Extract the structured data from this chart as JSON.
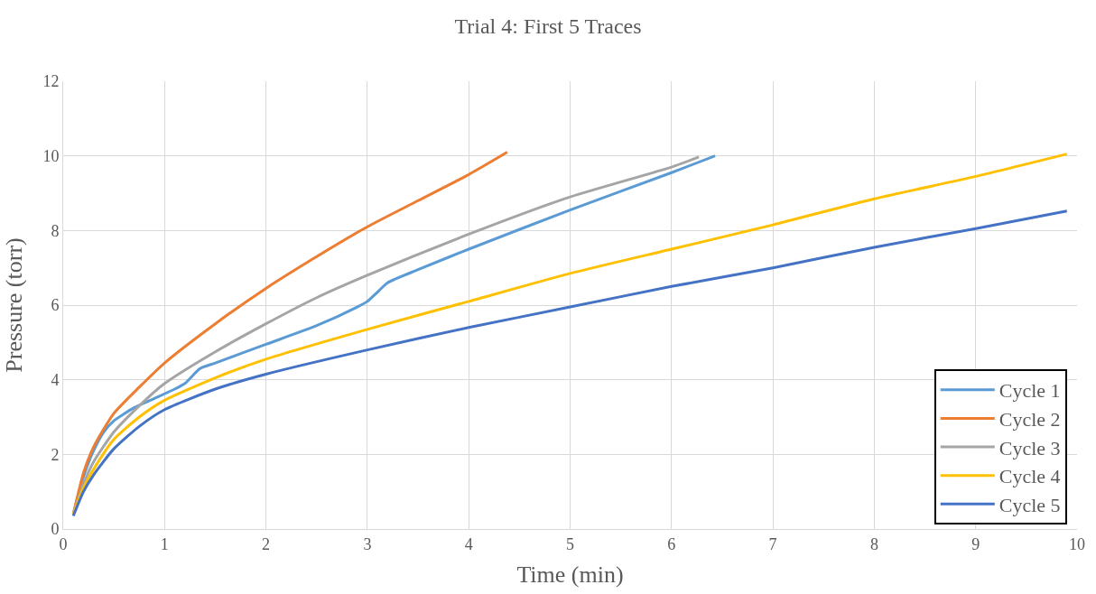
{
  "chart_data": {
    "type": "line",
    "title": "Trial 4: First 5 Traces",
    "xlabel": "Time (min)",
    "ylabel": "Pressure (torr)",
    "xlim": [
      0,
      10
    ],
    "xticks": [
      0,
      1,
      2,
      3,
      4,
      5,
      6,
      7,
      8,
      9,
      10
    ],
    "ylim": [
      0,
      12
    ],
    "yticks": [
      0,
      2,
      4,
      6,
      8,
      10,
      12
    ],
    "grid": true,
    "legend": "bottom right",
    "marker": "none",
    "line_style": "solid",
    "series": [
      {
        "name": "Cycle 1",
        "color": "#5b9bd5",
        "x": [
          0.1,
          0.2,
          0.3,
          0.4,
          0.5,
          0.7,
          0.9,
          1.1,
          1.2,
          1.35,
          1.5,
          2,
          2.5,
          2.9,
          3.0,
          3.1,
          3.2,
          3.5,
          4,
          5,
          6,
          6.43
        ],
        "values": [
          0.4,
          1.4,
          2.1,
          2.6,
          2.9,
          3.25,
          3.5,
          3.75,
          3.9,
          4.3,
          4.45,
          4.95,
          5.45,
          5.95,
          6.1,
          6.35,
          6.6,
          6.95,
          7.5,
          8.55,
          9.55,
          10.0
        ]
      },
      {
        "name": "Cycle 2",
        "color": "#ed7d31",
        "x": [
          0.1,
          0.2,
          0.3,
          0.5,
          0.75,
          1,
          1.5,
          2,
          2.5,
          3,
          3.5,
          4,
          4.38
        ],
        "values": [
          0.4,
          1.5,
          2.2,
          3.1,
          3.8,
          4.45,
          5.5,
          6.45,
          7.3,
          8.1,
          8.8,
          9.5,
          10.1
        ]
      },
      {
        "name": "Cycle 3",
        "color": "#a5a5a5",
        "x": [
          0.1,
          0.2,
          0.3,
          0.5,
          0.75,
          1,
          1.5,
          2,
          2.5,
          3,
          4,
          5,
          6,
          6.27
        ],
        "values": [
          0.4,
          1.2,
          1.8,
          2.6,
          3.3,
          3.9,
          4.75,
          5.5,
          6.2,
          6.8,
          7.9,
          8.9,
          9.7,
          9.97
        ]
      },
      {
        "name": "Cycle 4",
        "color": "#ffc000",
        "x": [
          0.1,
          0.2,
          0.3,
          0.5,
          0.75,
          1,
          1.5,
          2,
          3,
          4,
          5,
          6,
          7,
          8,
          9,
          9.9
        ],
        "values": [
          0.4,
          1.1,
          1.6,
          2.4,
          3.0,
          3.45,
          4.05,
          4.55,
          5.35,
          6.1,
          6.85,
          7.5,
          8.15,
          8.85,
          9.45,
          10.05
        ]
      },
      {
        "name": "Cycle 5",
        "color": "#4472c4",
        "x": [
          0.1,
          0.2,
          0.3,
          0.5,
          0.75,
          1,
          1.5,
          2,
          3,
          4,
          5,
          6,
          7,
          8,
          9,
          9.9
        ],
        "values": [
          0.35,
          1.0,
          1.45,
          2.15,
          2.75,
          3.2,
          3.75,
          4.15,
          4.8,
          5.4,
          5.95,
          6.5,
          7.0,
          7.55,
          8.05,
          8.52
        ]
      }
    ]
  }
}
